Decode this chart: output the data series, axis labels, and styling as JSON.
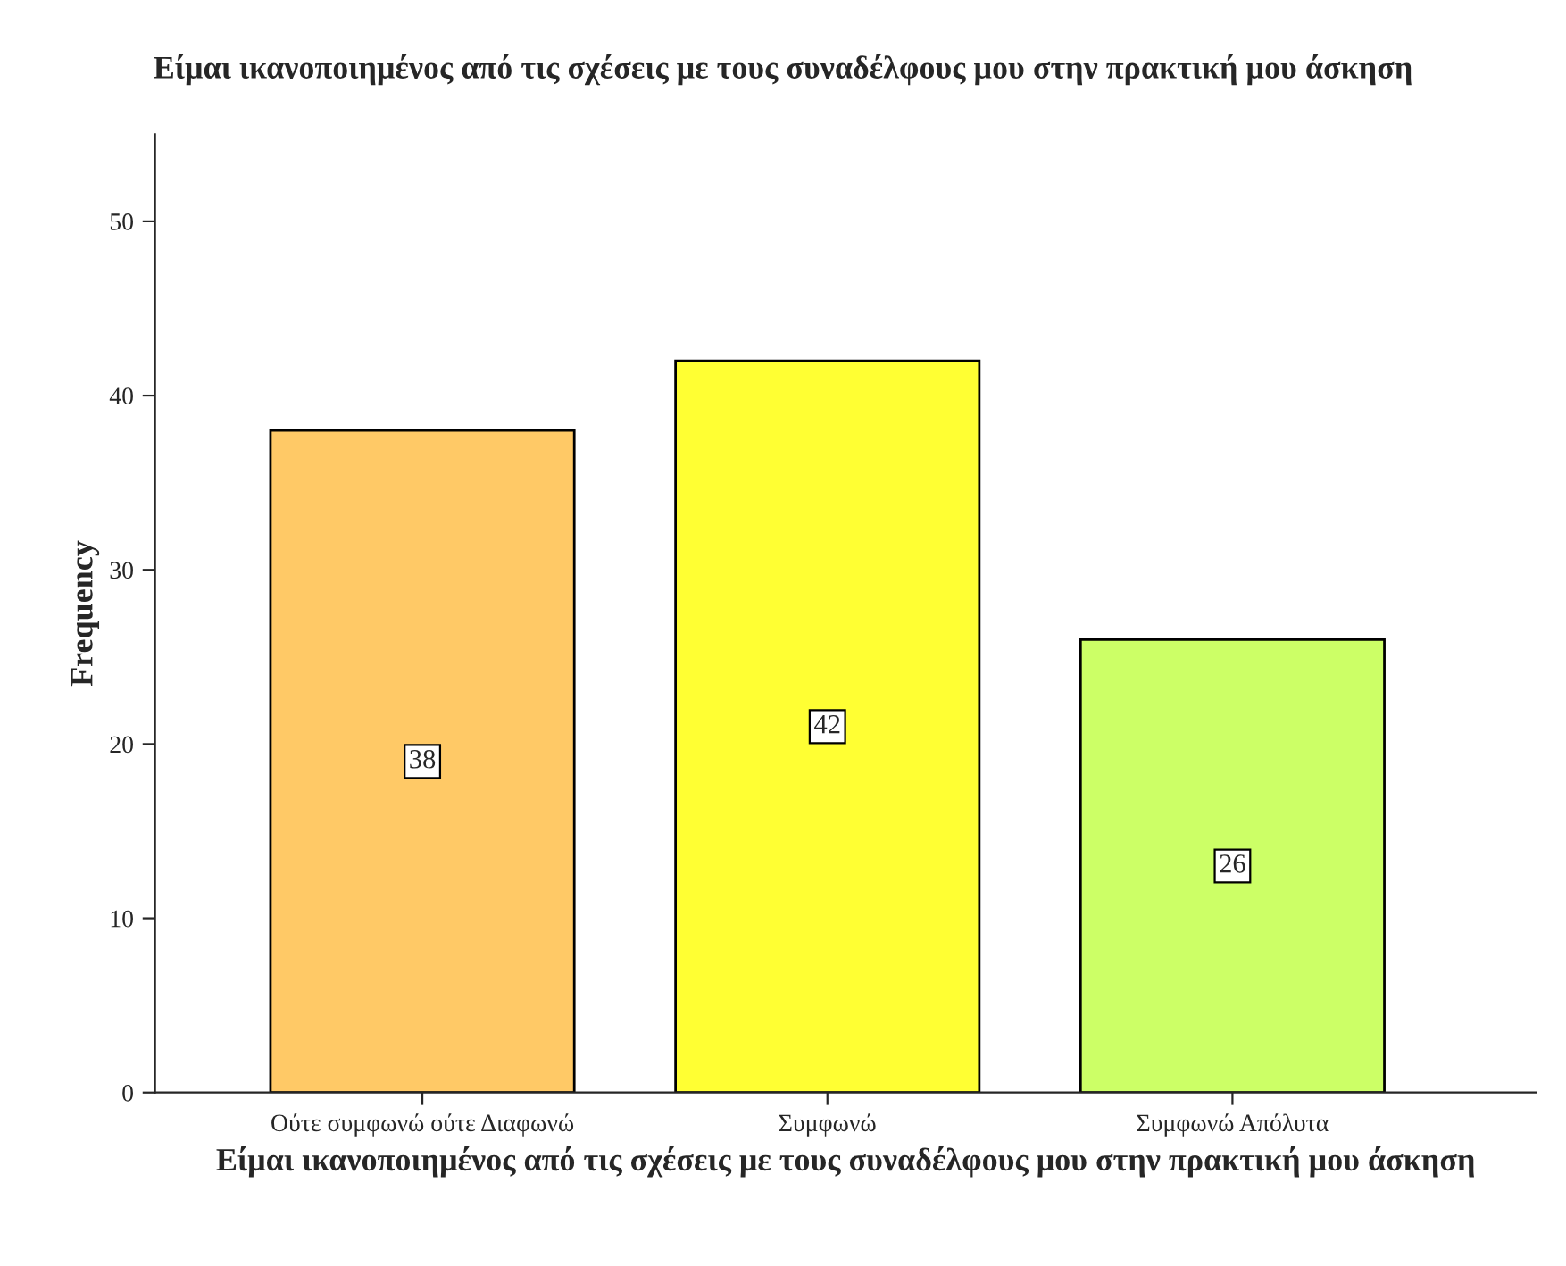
{
  "chart_data": {
    "type": "bar",
    "title": "Είμαι ικανοποιημένος από τις σχέσεις με τους συναδέλφους μου στην πρακτική μου άσκηση",
    "xlabel": "Είμαι ικανοποιημένος από τις σχέσεις με τους συναδέλφους μου στην πρακτική μου άσκηση",
    "ylabel": "Frequency",
    "categories": [
      "Ούτε συμφωνώ ούτε Διαφωνώ",
      "Συμφωνώ",
      "Συμφωνώ Απόλυτα"
    ],
    "values": [
      38,
      42,
      26
    ],
    "colors": [
      "#ffc966",
      "#ffff33",
      "#ccff66"
    ],
    "ylim": [
      0,
      55
    ],
    "yticks": [
      0,
      10,
      20,
      30,
      40,
      50
    ],
    "grid": false,
    "data_labels": true
  }
}
